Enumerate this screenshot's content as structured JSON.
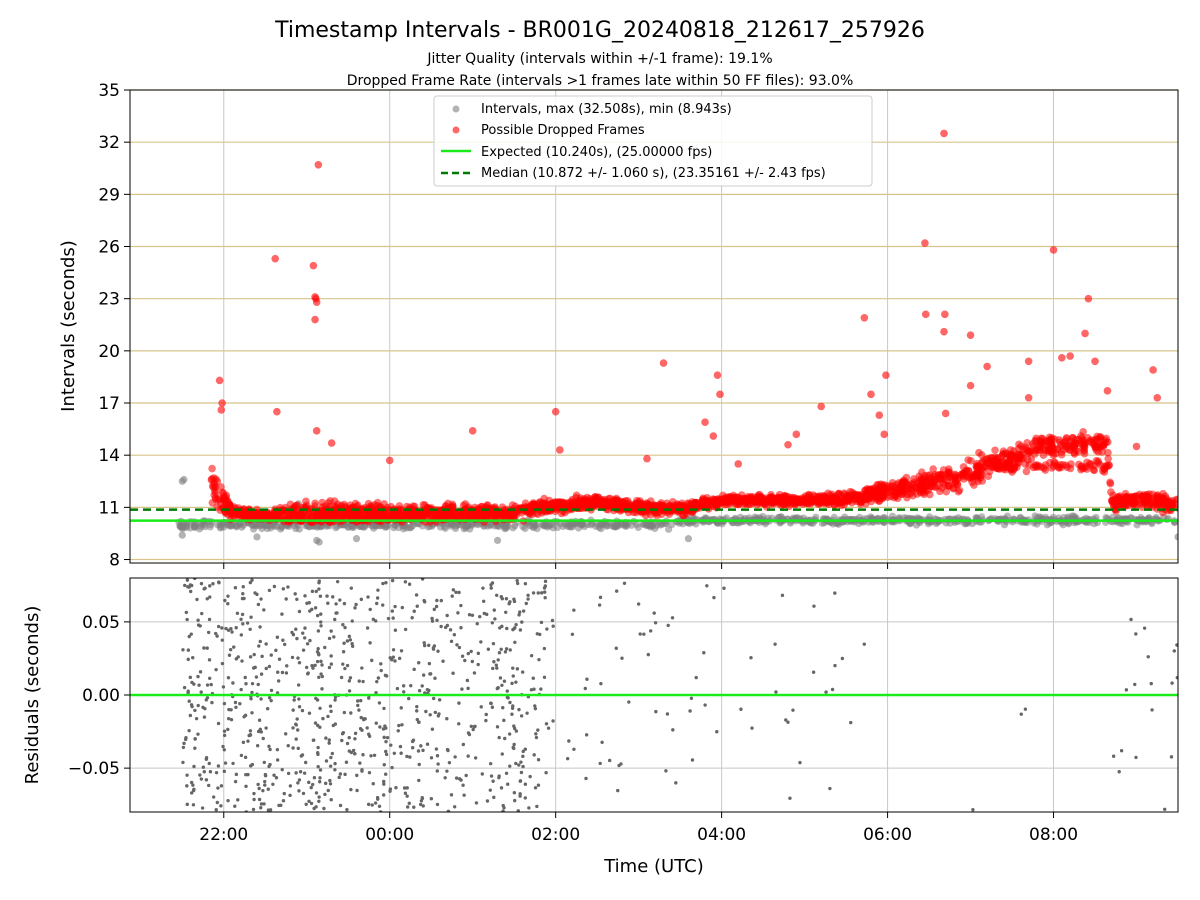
{
  "chart_data": [
    {
      "type": "scatter",
      "panel": "intervals",
      "title": "Timestamp Intervals - BR001G_20240818_212617_257926",
      "subtitle_lines": [
        "Jitter Quality (intervals within +/-1 frame): 19.1%",
        "Dropped Frame Rate (intervals >1 frames late within 50 FF files): 93.0%"
      ],
      "ylabel": "Intervals (seconds)",
      "ylim": [
        7.8,
        35
      ],
      "yticks": [
        8,
        11,
        14,
        17,
        20,
        23,
        26,
        29,
        32,
        35
      ],
      "xlim_hours_utc": [
        20.87,
        33.5
      ],
      "grid": true,
      "legend": {
        "placement": "top-center",
        "entries": [
          "Intervals, max (32.508s), min (8.943s)",
          "Possible Dropped Frames",
          "Expected (10.240s), (25.00000 fps)",
          "Median (10.872 +/- 1.060 s), (23.35161 +/- 2.43 fps)"
        ]
      },
      "reference_lines": {
        "expected": 10.24,
        "median": 10.872
      },
      "colors": {
        "intervals": "#808080",
        "dropped": "#ff0000",
        "expected": "#1aeb1a",
        "median": "#007a00",
        "hgrid": "#d8c48a",
        "vgrid": "#c8c8c8"
      },
      "dropped_outliers": [
        {
          "t": 21.95,
          "v": 18.3
        },
        {
          "t": 21.98,
          "v": 17.0
        },
        {
          "t": 21.97,
          "v": 16.6
        },
        {
          "t": 22.62,
          "v": 25.3
        },
        {
          "t": 22.64,
          "v": 16.5
        },
        {
          "t": 23.08,
          "v": 24.9
        },
        {
          "t": 23.1,
          "v": 23.1
        },
        {
          "t": 23.11,
          "v": 23.0
        },
        {
          "t": 23.12,
          "v": 22.8
        },
        {
          "t": 23.1,
          "v": 21.8
        },
        {
          "t": 23.14,
          "v": 30.7
        },
        {
          "t": 23.12,
          "v": 15.4
        },
        {
          "t": 23.3,
          "v": 14.7
        },
        {
          "t": 24.0,
          "v": 13.7
        },
        {
          "t": 25.0,
          "v": 15.4
        },
        {
          "t": 26.0,
          "v": 16.5
        },
        {
          "t": 26.05,
          "v": 14.3
        },
        {
          "t": 27.1,
          "v": 13.8
        },
        {
          "t": 27.3,
          "v": 19.3
        },
        {
          "t": 27.8,
          "v": 15.9
        },
        {
          "t": 27.95,
          "v": 18.6
        },
        {
          "t": 27.98,
          "v": 17.5
        },
        {
          "t": 27.9,
          "v": 15.1
        },
        {
          "t": 28.2,
          "v": 13.5
        },
        {
          "t": 28.8,
          "v": 14.6
        },
        {
          "t": 28.9,
          "v": 15.2
        },
        {
          "t": 29.2,
          "v": 16.8
        },
        {
          "t": 29.72,
          "v": 21.9
        },
        {
          "t": 29.8,
          "v": 17.5
        },
        {
          "t": 29.9,
          "v": 16.3
        },
        {
          "t": 29.98,
          "v": 18.6
        },
        {
          "t": 29.96,
          "v": 15.2
        },
        {
          "t": 30.45,
          "v": 26.2
        },
        {
          "t": 30.46,
          "v": 22.1
        },
        {
          "t": 30.68,
          "v": 32.5
        },
        {
          "t": 30.69,
          "v": 22.1
        },
        {
          "t": 30.68,
          "v": 21.1
        },
        {
          "t": 30.7,
          "v": 16.4
        },
        {
          "t": 31.0,
          "v": 20.9
        },
        {
          "t": 31.0,
          "v": 18.0
        },
        {
          "t": 31.2,
          "v": 19.1
        },
        {
          "t": 31.7,
          "v": 19.4
        },
        {
          "t": 31.7,
          "v": 17.3
        },
        {
          "t": 32.0,
          "v": 25.8
        },
        {
          "t": 32.1,
          "v": 19.6
        },
        {
          "t": 32.2,
          "v": 19.7
        },
        {
          "t": 32.38,
          "v": 21.0
        },
        {
          "t": 32.42,
          "v": 23.0
        },
        {
          "t": 32.5,
          "v": 19.4
        },
        {
          "t": 32.65,
          "v": 17.7
        },
        {
          "t": 33.2,
          "v": 18.9
        },
        {
          "t": 33.25,
          "v": 17.3
        },
        {
          "t": 33.0,
          "v": 14.5
        }
      ],
      "dropped_trend": [
        {
          "t": 21.85,
          "base": 12.3,
          "spread": 1.6
        },
        {
          "t": 22.1,
          "base": 10.7,
          "spread": 0.5
        },
        {
          "t": 22.5,
          "base": 10.5,
          "spread": 0.4
        },
        {
          "t": 23.0,
          "base": 10.6,
          "spread": 1.2
        },
        {
          "t": 24.0,
          "base": 10.6,
          "spread": 0.7
        },
        {
          "t": 25.0,
          "base": 10.7,
          "spread": 0.8
        },
        {
          "t": 25.5,
          "base": 10.7,
          "spread": 0.6
        },
        {
          "t": 26.0,
          "base": 11.1,
          "spread": 0.6
        },
        {
          "t": 26.5,
          "base": 11.3,
          "spread": 0.6
        },
        {
          "t": 27.0,
          "base": 11.0,
          "spread": 0.5
        },
        {
          "t": 27.5,
          "base": 10.9,
          "spread": 0.5
        },
        {
          "t": 28.0,
          "base": 11.4,
          "spread": 0.4
        },
        {
          "t": 29.0,
          "base": 11.4,
          "spread": 0.4
        },
        {
          "t": 29.5,
          "base": 11.5,
          "spread": 0.5
        },
        {
          "t": 30.0,
          "base": 11.9,
          "spread": 0.8
        },
        {
          "t": 30.5,
          "base": 12.4,
          "spread": 1.1
        },
        {
          "t": 31.0,
          "base": 13.0,
          "spread": 1.2
        },
        {
          "t": 31.5,
          "base": 13.8,
          "spread": 1.0
        },
        {
          "t": 31.85,
          "base": 14.6,
          "spread": 0.9
        },
        {
          "t": 32.2,
          "base": 14.6,
          "spread": 0.9
        },
        {
          "t": 32.65,
          "base": 14.7,
          "spread": 0.8
        },
        {
          "t": 32.7,
          "base": 11.3,
          "spread": 0.6
        },
        {
          "t": 33.1,
          "base": 11.5,
          "spread": 0.7
        },
        {
          "t": 33.5,
          "base": 11.0,
          "spread": 0.7
        }
      ],
      "interval_outliers": [
        {
          "t": 21.5,
          "v": 12.5
        },
        {
          "t": 21.52,
          "v": 12.6
        },
        {
          "t": 21.5,
          "v": 9.4
        },
        {
          "t": 22.4,
          "v": 9.3
        },
        {
          "t": 22.9,
          "v": 11.2
        },
        {
          "t": 23.12,
          "v": 9.1
        },
        {
          "t": 23.15,
          "v": 9.0
        },
        {
          "t": 23.6,
          "v": 9.2
        },
        {
          "t": 25.3,
          "v": 9.1
        },
        {
          "t": 27.6,
          "v": 9.2
        },
        {
          "t": 33.5,
          "v": 9.3
        }
      ]
    },
    {
      "type": "scatter",
      "panel": "residuals",
      "xlabel": "Time (UTC)",
      "ylabel": "Residuals (seconds)",
      "ylim": [
        -0.08,
        0.08
      ],
      "yticks": [
        {
          "value": 0.05,
          "label": "0.05"
        },
        {
          "value": 0.0,
          "label": "0.00"
        },
        {
          "value": -0.05,
          "label": "−0.05"
        }
      ],
      "xlim_hours_utc": [
        20.87,
        33.5
      ],
      "xticks": [
        {
          "value": 22,
          "label": "22:00"
        },
        {
          "value": 24,
          "label": "00:00"
        },
        {
          "value": 26,
          "label": "02:00"
        },
        {
          "value": 28,
          "label": "04:00"
        },
        {
          "value": 30,
          "label": "06:00"
        },
        {
          "value": 32,
          "label": "08:00"
        }
      ],
      "zero_line": 0.0,
      "colors": {
        "points": "#666666",
        "zero": "#1aeb1a",
        "grid": "#c8c8c8"
      },
      "density": [
        {
          "start": 21.5,
          "end": 22.2,
          "count": 150
        },
        {
          "start": 22.2,
          "end": 23.2,
          "count": 230
        },
        {
          "start": 23.2,
          "end": 24.2,
          "count": 190
        },
        {
          "start": 24.2,
          "end": 25.2,
          "count": 150
        },
        {
          "start": 25.2,
          "end": 25.9,
          "count": 150
        },
        {
          "start": 25.9,
          "end": 27.0,
          "count": 28
        },
        {
          "start": 27.0,
          "end": 28.0,
          "count": 22
        },
        {
          "start": 28.0,
          "end": 29.0,
          "count": 12
        },
        {
          "start": 29.0,
          "end": 29.8,
          "count": 10
        },
        {
          "start": 29.8,
          "end": 32.7,
          "count": 3
        },
        {
          "start": 32.7,
          "end": 33.3,
          "count": 12
        },
        {
          "start": 33.3,
          "end": 33.5,
          "count": 6
        }
      ]
    }
  ]
}
